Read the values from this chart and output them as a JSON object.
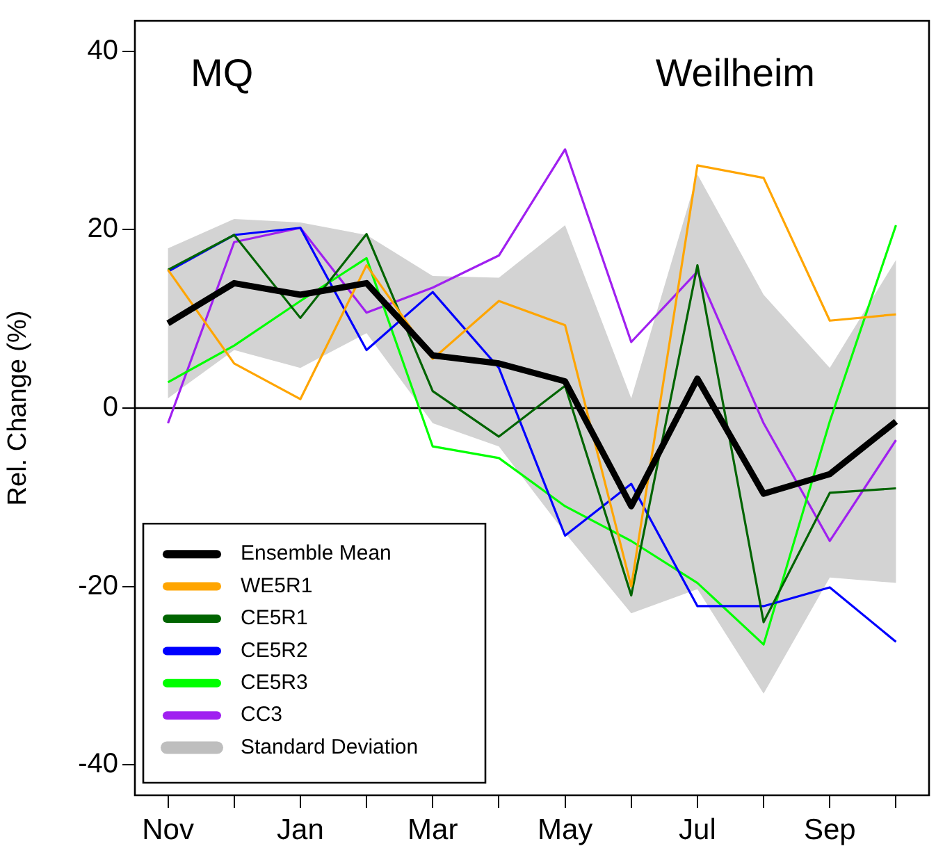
{
  "chart_data": {
    "type": "line",
    "ylabel": "Rel. Change (%)",
    "annotations": [
      "MQ",
      "Weilheim",
      "Standard Deviation"
    ],
    "categories": [
      "Nov",
      null,
      "Jan",
      null,
      "Mar",
      null,
      "May",
      null,
      "Jul",
      null,
      "Sep",
      null
    ],
    "ylim": [
      -43.4,
      43.4
    ],
    "yticks": [
      -40,
      -20,
      0,
      20,
      40
    ],
    "grid": false,
    "legend": "bottom left",
    "ref_lines": [
      {
        "axis": "y",
        "value": 0,
        "color": "#000000"
      }
    ],
    "series": [
      {
        "name": "Ensemble Mean",
        "color": "#000000",
        "values": [
          9.5,
          14,
          12.7,
          14,
          5.9,
          5,
          3,
          -11,
          3.3,
          -9.6,
          -7.4,
          -1.5
        ],
        "lower": [
          1.1,
          6.5,
          4.5,
          8.4,
          -1.7,
          -4.3,
          -14,
          -23,
          -20.3,
          -32,
          -19,
          -19.6
        ],
        "upper": [
          17.9,
          21.2,
          20.8,
          19.4,
          14.8,
          14.6,
          20.5,
          1.1,
          26.2,
          12.7,
          4.5,
          16.6
        ]
      },
      {
        "name": "WE5R1",
        "color": "#ffa500",
        "values": [
          15.5,
          5,
          1,
          16,
          5.5,
          12,
          9.3,
          -20,
          27.2,
          25.8,
          9.8,
          10.5
        ]
      },
      {
        "name": "CE5R1",
        "color": "#006400",
        "values": [
          15.5,
          19.4,
          10.1,
          19.5,
          1.9,
          -3.2,
          2.5,
          -21,
          16,
          -24,
          -9.5,
          -9
        ]
      },
      {
        "name": "CE5R2",
        "color": "#0000ff",
        "values": [
          15.3,
          19.4,
          20.2,
          6.5,
          13,
          4.5,
          -14.3,
          -8.5,
          -22.2,
          -22.2,
          -20.1,
          -26.2
        ]
      },
      {
        "name": "CE5R3",
        "color": "#00ff00",
        "values": [
          2.9,
          7,
          12,
          16.8,
          -4.3,
          -5.6,
          -11,
          -14.9,
          -19.6,
          -26.5,
          -1.5,
          20.5
        ]
      },
      {
        "name": "CC3",
        "color": "#a020f0",
        "values": [
          -1.7,
          18.6,
          20.2,
          10.7,
          13.5,
          17.1,
          29,
          7.4,
          15.3,
          -1.7,
          -14.9,
          -3.6
        ]
      }
    ]
  }
}
